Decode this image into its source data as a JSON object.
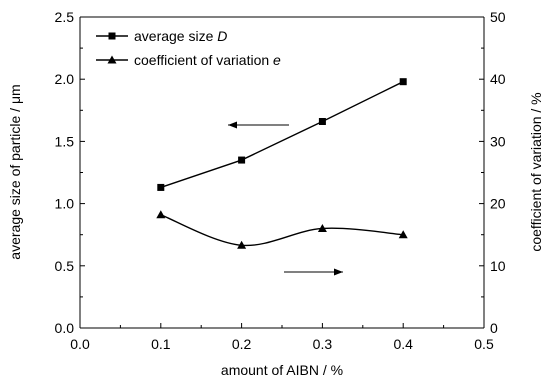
{
  "chart_data": {
    "type": "line",
    "x": [
      0.1,
      0.2,
      0.3,
      0.4
    ],
    "xlabel": "amount of AIBN / %",
    "xlim": [
      0.0,
      0.5
    ],
    "xticks": [
      "0.0",
      "0.1",
      "0.2",
      "0.3",
      "0.4",
      "0.5"
    ],
    "ylabel_left": "average size of particle / μm",
    "ylim_left": [
      0.0,
      2.5
    ],
    "yticks_left": [
      "0.0",
      "0.5",
      "1.0",
      "1.5",
      "2.0",
      "2.5"
    ],
    "ylabel_right": "coefficient of variation / %",
    "ylim_right": [
      0,
      50
    ],
    "yticks_right": [
      "0",
      "10",
      "20",
      "30",
      "40",
      "50"
    ],
    "grid": false,
    "legend_position": "top-left",
    "series": [
      {
        "name": "average size D",
        "name_prefix": "average size ",
        "name_symbol": "D",
        "marker": "square",
        "axis": "left",
        "values": [
          1.13,
          1.35,
          1.66,
          1.98
        ]
      },
      {
        "name": "coefficient of variation e",
        "name_prefix": "coefficient of variation ",
        "name_symbol": "e",
        "marker": "triangle",
        "axis": "right",
        "values": [
          18.2,
          13.3,
          16.0,
          15.0
        ]
      }
    ],
    "annotations": [
      {
        "type": "arrow",
        "direction": "left",
        "points_to_axis": "left"
      },
      {
        "type": "arrow",
        "direction": "right",
        "points_to_axis": "right"
      }
    ]
  }
}
